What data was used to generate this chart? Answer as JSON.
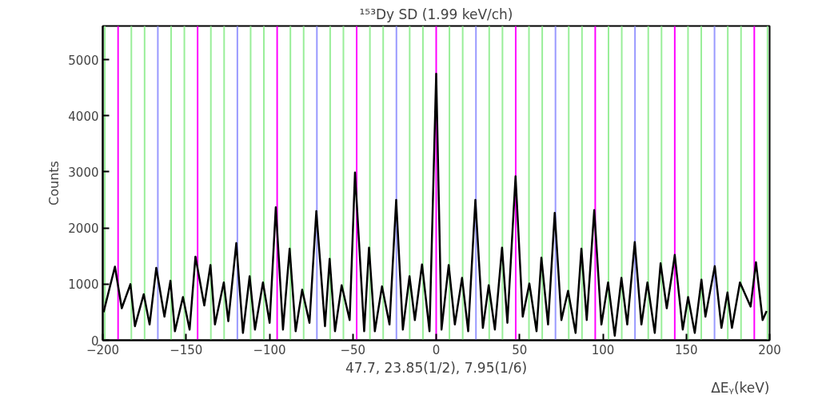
{
  "chart_data": {
    "type": "line",
    "title": "¹⁵³Dy SD (1.99 keV/ch)",
    "xlabel": "ΔEᵧ(keV)",
    "ylabel": "Counts",
    "annotations": [
      "47.7, 23.85(1/2), 7.95(1/6)"
    ],
    "xlim": [
      -200,
      200
    ],
    "xticks": [
      -200,
      -150,
      -100,
      -50,
      0,
      50,
      100,
      150,
      200
    ],
    "ylim": [
      0,
      5600
    ],
    "yticks": [
      0,
      1000,
      2000,
      3000,
      4000,
      5000
    ],
    "grid": false,
    "marker": "none",
    "line_style": "solid",
    "series": [
      {
        "color": "#000000",
        "x": [
          -199.5,
          -192.7,
          -188.6,
          -183.4,
          -180.7,
          -175.4,
          -171.9,
          -167.9,
          -163,
          -159.4,
          -156.7,
          -151.9,
          -147.9,
          -144.4,
          -139.1,
          -135.4,
          -132.7,
          -127.4,
          -124.7,
          -119.9,
          -115.9,
          -111.9,
          -108.7,
          -103.9,
          -99.9,
          -96.2,
          -91.9,
          -87.9,
          -84.3,
          -80.4,
          -76,
          -71.9,
          -66.7,
          -63.9,
          -60.7,
          -56.7,
          -51.9,
          -48.7,
          -43.2,
          -40.3,
          -36.8,
          -32.5,
          -28,
          -24,
          -20,
          -16,
          -12.8,
          -8.5,
          -4,
          0,
          3.2,
          7.5,
          11.2,
          15.5,
          19.2,
          23.5,
          28,
          31.5,
          35.2,
          39.5,
          42.7,
          47.6,
          51.9,
          55.9,
          60.2,
          63.1,
          67.1,
          71.1,
          75.1,
          79.1,
          83.6,
          87.1,
          90.3,
          94.8,
          99.1,
          103.1,
          107.1,
          111.1,
          114.6,
          119.1,
          123.1,
          126.7,
          131.1,
          134.6,
          138.3,
          141.5,
          143.1,
          147.9,
          151.1,
          155.1,
          159.1,
          161.5,
          167.1,
          171.1,
          174.7,
          177.4,
          182.2,
          188.6,
          191.8,
          195.8,
          198.2
        ],
        "values": [
          500,
          1310,
          570,
          1000,
          250,
          820,
          280,
          1290,
          420,
          1060,
          160,
          770,
          190,
          1490,
          620,
          1340,
          280,
          1030,
          340,
          1730,
          130,
          1140,
          190,
          1030,
          310,
          2370,
          190,
          1630,
          160,
          900,
          310,
          2300,
          250,
          1450,
          160,
          980,
          360,
          2990,
          160,
          1650,
          160,
          960,
          280,
          2500,
          190,
          1140,
          360,
          1350,
          160,
          4750,
          190,
          1340,
          280,
          1110,
          160,
          2500,
          220,
          980,
          190,
          1650,
          310,
          2920,
          420,
          1010,
          160,
          1470,
          280,
          2270,
          360,
          880,
          130,
          1630,
          360,
          2320,
          280,
          1030,
          80,
          1110,
          280,
          1750,
          280,
          1030,
          130,
          1370,
          570,
          1190,
          1520,
          190,
          770,
          130,
          1080,
          420,
          1320,
          220,
          850,
          220,
          1030,
          600,
          1390,
          360,
          520
        ]
      }
    ],
    "ref_lines": [
      {
        "axis": "x",
        "value": -198.75,
        "color": "#99ee99"
      },
      {
        "axis": "x",
        "value": -190.8,
        "color": "#ff00ff"
      },
      {
        "axis": "x",
        "value": -182.85,
        "color": "#99ee99"
      },
      {
        "axis": "x",
        "value": -174.9,
        "color": "#99ee99"
      },
      {
        "axis": "x",
        "value": -166.95,
        "color": "#9999ff"
      },
      {
        "axis": "x",
        "value": -159,
        "color": "#99ee99"
      },
      {
        "axis": "x",
        "value": -151.05,
        "color": "#99ee99"
      },
      {
        "axis": "x",
        "value": -143.1,
        "color": "#ff00ff"
      },
      {
        "axis": "x",
        "value": -135.15,
        "color": "#99ee99"
      },
      {
        "axis": "x",
        "value": -127.2,
        "color": "#99ee99"
      },
      {
        "axis": "x",
        "value": -119.25,
        "color": "#9999ff"
      },
      {
        "axis": "x",
        "value": -111.3,
        "color": "#99ee99"
      },
      {
        "axis": "x",
        "value": -103.35,
        "color": "#99ee99"
      },
      {
        "axis": "x",
        "value": -95.4,
        "color": "#ff00ff"
      },
      {
        "axis": "x",
        "value": -87.45,
        "color": "#99ee99"
      },
      {
        "axis": "x",
        "value": -79.5,
        "color": "#99ee99"
      },
      {
        "axis": "x",
        "value": -71.55,
        "color": "#9999ff"
      },
      {
        "axis": "x",
        "value": -63.6,
        "color": "#99ee99"
      },
      {
        "axis": "x",
        "value": -55.65,
        "color": "#99ee99"
      },
      {
        "axis": "x",
        "value": -47.7,
        "color": "#ff00ff"
      },
      {
        "axis": "x",
        "value": -39.75,
        "color": "#99ee99"
      },
      {
        "axis": "x",
        "value": -31.8,
        "color": "#99ee99"
      },
      {
        "axis": "x",
        "value": -23.85,
        "color": "#9999ff"
      },
      {
        "axis": "x",
        "value": -15.9,
        "color": "#99ee99"
      },
      {
        "axis": "x",
        "value": -7.95,
        "color": "#99ee99"
      },
      {
        "axis": "x",
        "value": 0,
        "color": "#ff00ff"
      },
      {
        "axis": "x",
        "value": 7.95,
        "color": "#99ee99"
      },
      {
        "axis": "x",
        "value": 15.9,
        "color": "#99ee99"
      },
      {
        "axis": "x",
        "value": 23.85,
        "color": "#9999ff"
      },
      {
        "axis": "x",
        "value": 31.8,
        "color": "#99ee99"
      },
      {
        "axis": "x",
        "value": 39.75,
        "color": "#99ee99"
      },
      {
        "axis": "x",
        "value": 47.7,
        "color": "#ff00ff"
      },
      {
        "axis": "x",
        "value": 55.65,
        "color": "#99ee99"
      },
      {
        "axis": "x",
        "value": 63.6,
        "color": "#99ee99"
      },
      {
        "axis": "x",
        "value": 71.55,
        "color": "#9999ff"
      },
      {
        "axis": "x",
        "value": 79.5,
        "color": "#99ee99"
      },
      {
        "axis": "x",
        "value": 87.45,
        "color": "#99ee99"
      },
      {
        "axis": "x",
        "value": 95.4,
        "color": "#ff00ff"
      },
      {
        "axis": "x",
        "value": 103.35,
        "color": "#99ee99"
      },
      {
        "axis": "x",
        "value": 111.3,
        "color": "#99ee99"
      },
      {
        "axis": "x",
        "value": 119.25,
        "color": "#9999ff"
      },
      {
        "axis": "x",
        "value": 127.2,
        "color": "#99ee99"
      },
      {
        "axis": "x",
        "value": 135.15,
        "color": "#99ee99"
      },
      {
        "axis": "x",
        "value": 143.1,
        "color": "#ff00ff"
      },
      {
        "axis": "x",
        "value": 151.05,
        "color": "#99ee99"
      },
      {
        "axis": "x",
        "value": 159,
        "color": "#99ee99"
      },
      {
        "axis": "x",
        "value": 166.95,
        "color": "#9999ff"
      },
      {
        "axis": "x",
        "value": 174.9,
        "color": "#99ee99"
      },
      {
        "axis": "x",
        "value": 182.85,
        "color": "#99ee99"
      },
      {
        "axis": "x",
        "value": 190.8,
        "color": "#ff00ff"
      },
      {
        "axis": "x",
        "value": 198.75,
        "color": "#99ee99"
      }
    ]
  }
}
